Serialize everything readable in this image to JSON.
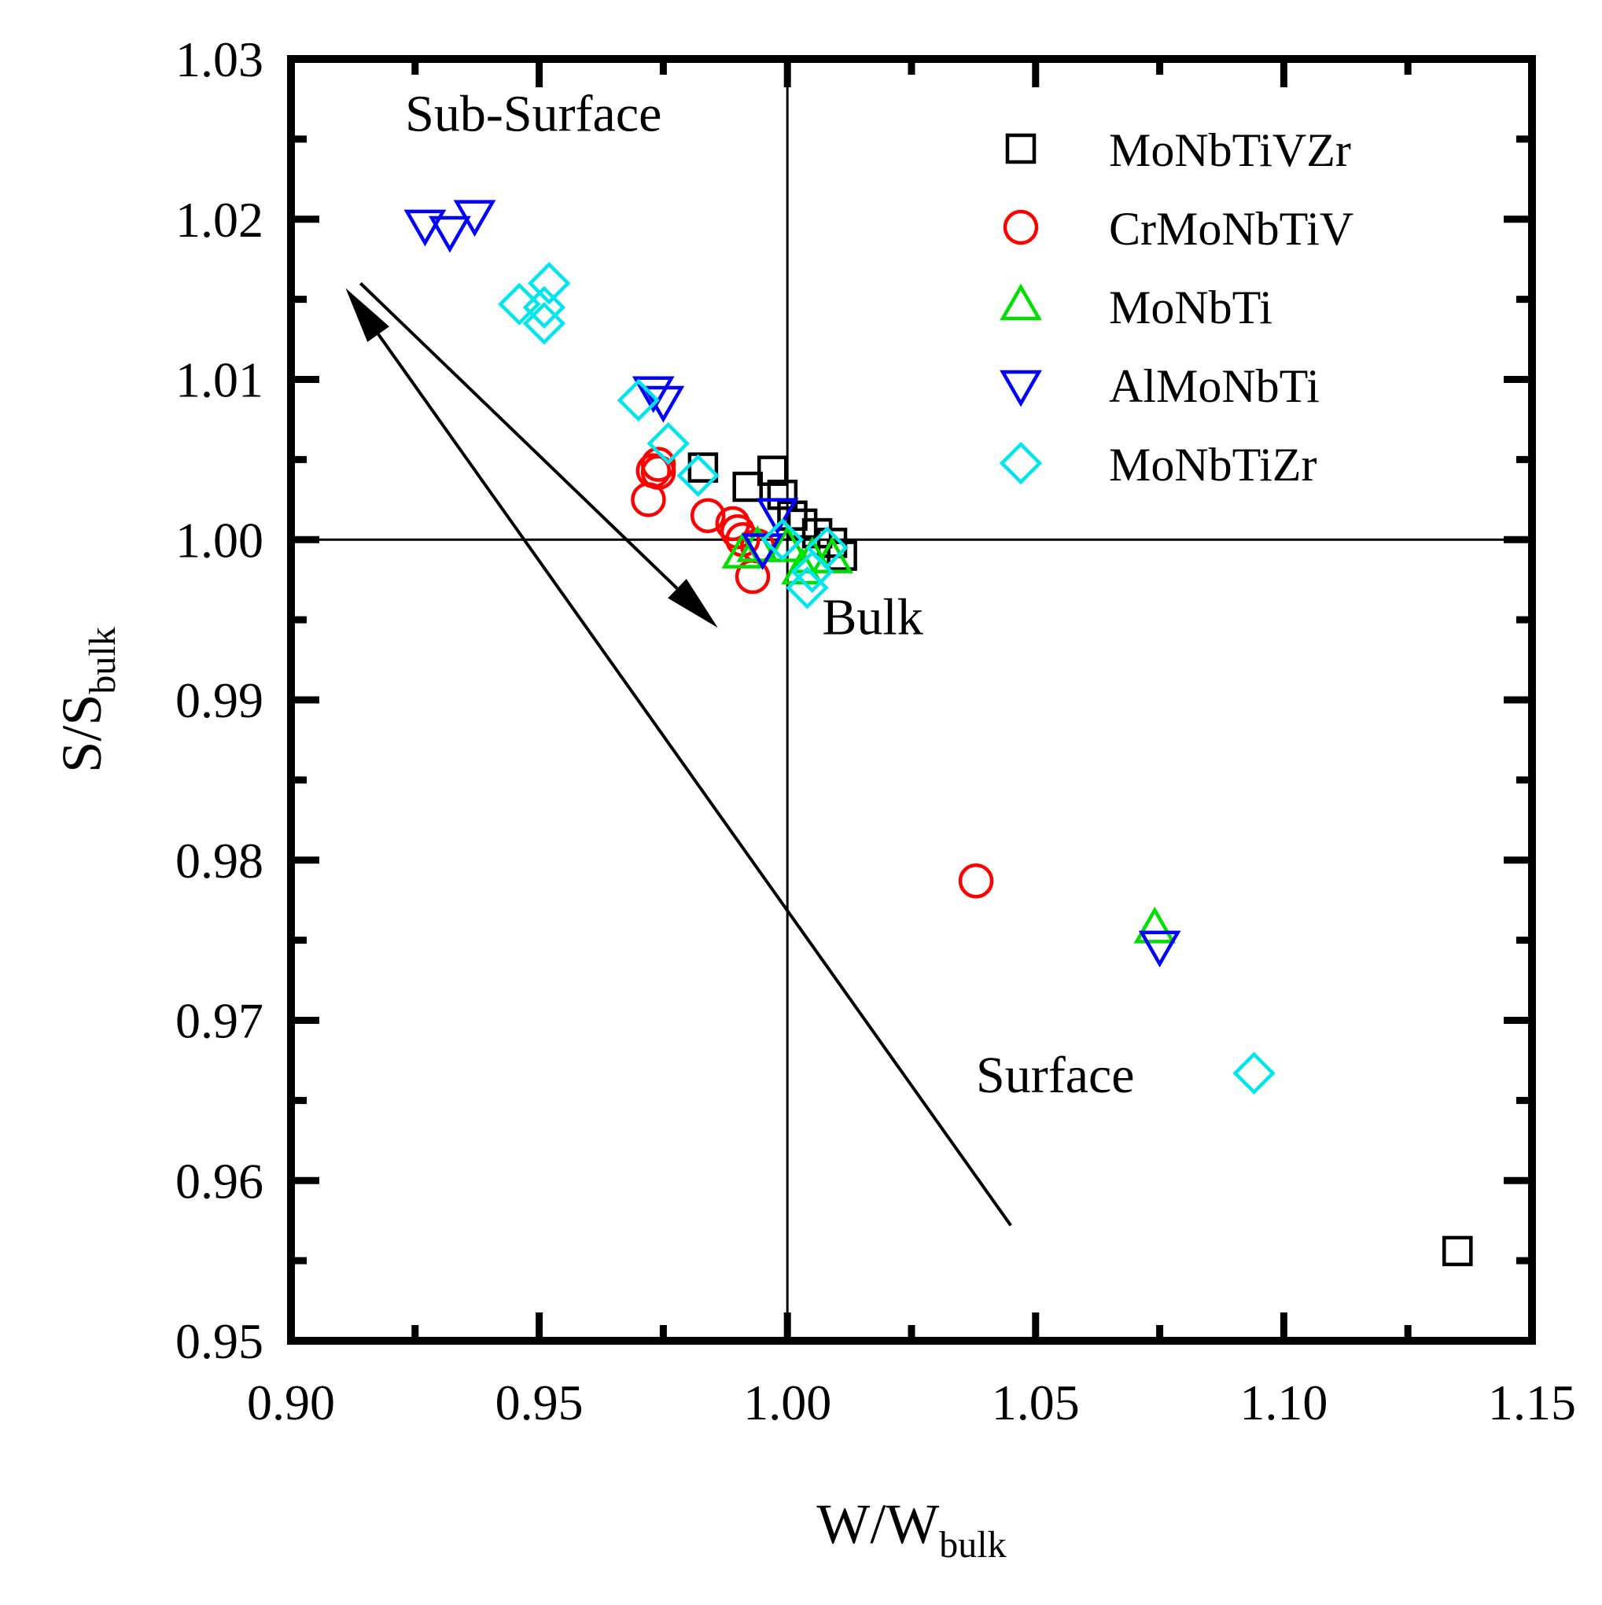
{
  "chart_data": {
    "type": "scatter",
    "xlabel": {
      "main": "W/W",
      "sub": "bulk"
    },
    "ylabel": {
      "main": "S/S",
      "sub": "bulk"
    },
    "xlim": [
      0.9,
      1.15
    ],
    "ylim": [
      0.95,
      1.03
    ],
    "x_ticks": [
      "0.90",
      "0.95",
      "1.00",
      "1.05",
      "1.10",
      "1.15"
    ],
    "y_ticks": [
      "0.95",
      "0.96",
      "0.97",
      "0.98",
      "0.99",
      "1.00",
      "1.01",
      "1.02",
      "1.03"
    ],
    "reference_lines": {
      "x": 1.0,
      "y": 1.0
    },
    "annotations": [
      {
        "text": "Sub-Surface",
        "x": 0.923,
        "y": 1.0255
      },
      {
        "text": "Bulk",
        "x": 1.007,
        "y": 0.9941
      },
      {
        "text": "Surface",
        "x": 1.038,
        "y": 0.9655
      }
    ],
    "arrows": [
      {
        "from": [
          0.914,
          1.016
        ],
        "to": [
          0.986,
          0.9945
        ]
      },
      {
        "from": [
          1.045,
          0.9572
        ],
        "to": [
          0.911,
          1.0157
        ]
      }
    ],
    "legend_position": "top-right",
    "series": [
      {
        "name": "MoNbTiVZr",
        "marker": "square",
        "color": "#000000",
        "points": [
          [
            0.983,
            1.0045
          ],
          [
            0.992,
            1.0033
          ],
          [
            0.997,
            1.0043
          ],
          [
            0.999,
            1.0028
          ],
          [
            1.001,
            1.0015
          ],
          [
            1.003,
            1.001
          ],
          [
            1.006,
            1.0004
          ],
          [
            1.009,
            0.9998
          ],
          [
            1.011,
            0.999
          ],
          [
            1.135,
            0.9556
          ]
        ]
      },
      {
        "name": "CrMoNbTiV",
        "marker": "circle",
        "color": "#ff0000",
        "points": [
          [
            0.972,
            1.0025
          ],
          [
            0.973,
            1.0043
          ],
          [
            0.974,
            1.0047
          ],
          [
            0.974,
            1.0042
          ],
          [
            0.984,
            1.0015
          ],
          [
            0.989,
            1.001
          ],
          [
            0.99,
            1.0005
          ],
          [
            0.991,
            1.0
          ],
          [
            0.993,
            0.9977
          ],
          [
            0.994,
            0.9996
          ],
          [
            1.038,
            0.9787
          ]
        ]
      },
      {
        "name": "MoNbTi",
        "marker": "triangle-up",
        "color": "#00e000",
        "points": [
          [
            0.991,
            0.9991
          ],
          [
            0.994,
            0.9995
          ],
          [
            1.0,
            0.9995
          ],
          [
            1.003,
            0.9981
          ],
          [
            1.005,
            0.9988
          ],
          [
            1.009,
            0.9988
          ],
          [
            1.074,
            0.9757
          ]
        ]
      },
      {
        "name": "AlMoNbTi",
        "marker": "triangle-down",
        "color": "#0000ff",
        "points": [
          [
            0.927,
            1.0197
          ],
          [
            0.932,
            1.0193
          ],
          [
            0.937,
            1.0203
          ],
          [
            0.973,
            1.0093
          ],
          [
            0.975,
            1.0087
          ],
          [
            0.995,
            0.9995
          ],
          [
            0.998,
            1.0017
          ],
          [
            1.075,
            0.9747
          ]
        ]
      },
      {
        "name": "MoNbTiZr",
        "marker": "diamond",
        "color": "#00e5ee",
        "points": [
          [
            0.946,
            1.0147
          ],
          [
            0.951,
            1.0145
          ],
          [
            0.951,
            1.0135
          ],
          [
            0.952,
            1.016
          ],
          [
            0.97,
            1.0087
          ],
          [
            0.976,
            1.006
          ],
          [
            0.982,
            1.004
          ],
          [
            0.999,
            1.0
          ],
          [
            1.004,
            0.997
          ],
          [
            1.005,
            0.998
          ],
          [
            1.008,
            0.9995
          ],
          [
            1.094,
            0.9667
          ]
        ]
      }
    ]
  }
}
